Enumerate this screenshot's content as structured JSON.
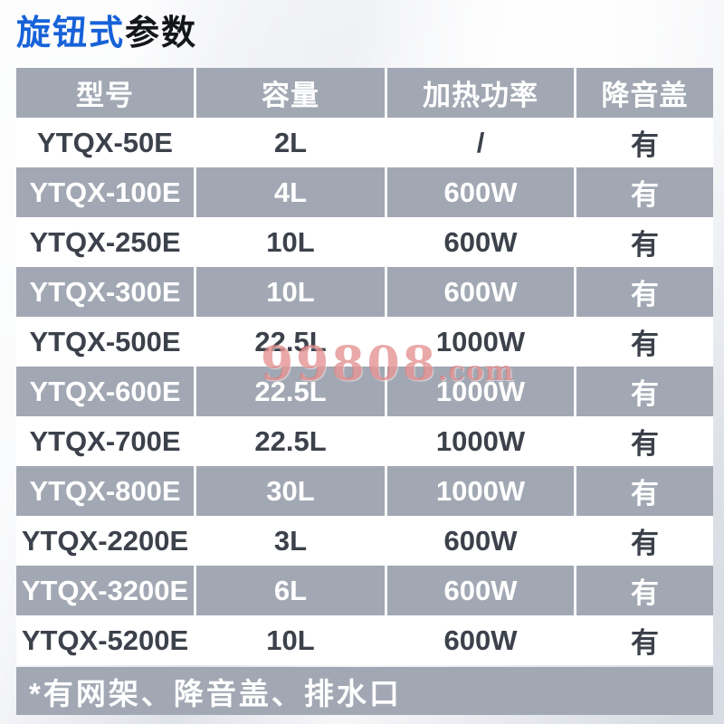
{
  "title": {
    "highlight": "旋钮式",
    "rest": "参数"
  },
  "table": {
    "headers": {
      "model": "型号",
      "capacity": "容量",
      "power": "加热功率",
      "lid": "降音盖"
    },
    "rows": [
      {
        "model": "YTQX-50E",
        "capacity": "2L",
        "power": "/",
        "lid": "有"
      },
      {
        "model": "YTQX-100E",
        "capacity": "4L",
        "power": "600W",
        "lid": "有"
      },
      {
        "model": "YTQX-250E",
        "capacity": "10L",
        "power": "600W",
        "lid": "有"
      },
      {
        "model": "YTQX-300E",
        "capacity": "10L",
        "power": "600W",
        "lid": "有"
      },
      {
        "model": "YTQX-500E",
        "capacity": "22.5L",
        "power": "1000W",
        "lid": "有"
      },
      {
        "model": "YTQX-600E",
        "capacity": "22.5L",
        "power": "1000W",
        "lid": "有"
      },
      {
        "model": "YTQX-700E",
        "capacity": "22.5L",
        "power": "1000W",
        "lid": "有"
      },
      {
        "model": "YTQX-800E",
        "capacity": "30L",
        "power": "1000W",
        "lid": "有"
      },
      {
        "model": "YTQX-2200E",
        "capacity": "3L",
        "power": "600W",
        "lid": "有"
      },
      {
        "model": "YTQX-3200E",
        "capacity": "6L",
        "power": "600W",
        "lid": "有"
      },
      {
        "model": "YTQX-5200E",
        "capacity": "10L",
        "power": "600W",
        "lid": "有"
      }
    ]
  },
  "footnote": "*有网架、降音盖、排水口",
  "watermark": {
    "main": "99808",
    "suffix": ".com"
  },
  "colors": {
    "accent_blue": "#1762d8",
    "row_gray": "#a2a8b3",
    "dark_text": "#3c414b",
    "watermark_pink": "#dd7373"
  }
}
